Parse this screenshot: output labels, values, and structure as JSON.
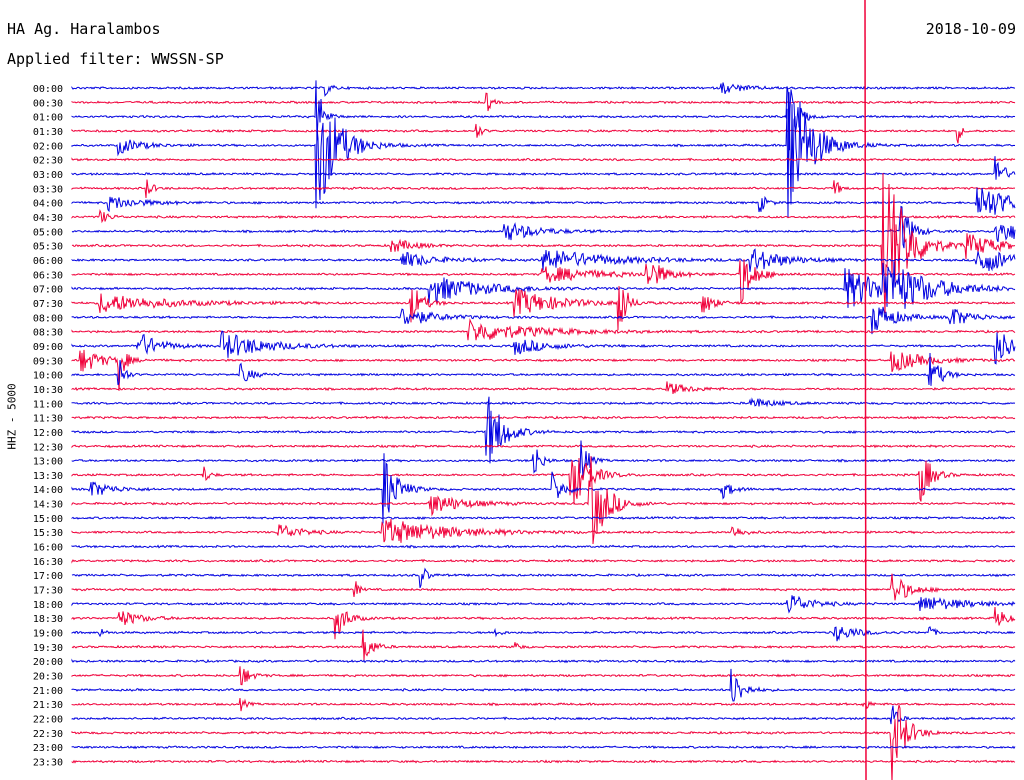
{
  "header": {
    "station": "HA Ag. Haralambos",
    "filter": "Applied filter: WWSSN-SP",
    "date": "2018-10-09"
  },
  "chart_data": {
    "type": "line",
    "subtype": "helicorder",
    "ylabel": "HHZ - 5000",
    "row_labels": [
      "00:00",
      "00:30",
      "01:00",
      "01:30",
      "02:00",
      "02:30",
      "03:00",
      "03:30",
      "04:00",
      "04:30",
      "05:00",
      "05:30",
      "06:00",
      "06:30",
      "07:00",
      "07:30",
      "08:00",
      "08:30",
      "09:00",
      "09:30",
      "10:00",
      "10:30",
      "11:00",
      "11:30",
      "12:00",
      "12:30",
      "13:00",
      "13:30",
      "14:00",
      "14:30",
      "15:00",
      "15:30",
      "16:00",
      "16:30",
      "17:00",
      "17:30",
      "18:00",
      "18:30",
      "19:00",
      "19:30",
      "20:00",
      "20:30",
      "21:00",
      "21:30",
      "22:00",
      "22:30",
      "23:00",
      "23:30"
    ],
    "colors": [
      "#0000e0",
      "#f0003a"
    ],
    "events": [
      {
        "row": 0,
        "t": 0.27,
        "amp": 0.5,
        "dur": 0.005
      },
      {
        "row": 0,
        "t": 0.69,
        "amp": 0.4,
        "dur": 0.02
      },
      {
        "row": 1,
        "t": 0.44,
        "amp": 0.8,
        "dur": 0.004
      },
      {
        "row": 2,
        "t": 0.26,
        "amp": 2.5,
        "dur": 0.006
      },
      {
        "row": 2,
        "t": 0.76,
        "amp": 3.0,
        "dur": 0.008
      },
      {
        "row": 3,
        "t": 0.43,
        "amp": 0.6,
        "dur": 0.004
      },
      {
        "row": 3,
        "t": 0.94,
        "amp": 0.8,
        "dur": 0.003
      },
      {
        "row": 4,
        "t": 0.26,
        "amp": 5.0,
        "dur": 0.02
      },
      {
        "row": 4,
        "t": 0.05,
        "amp": 0.6,
        "dur": 0.02
      },
      {
        "row": 4,
        "t": 0.76,
        "amp": 6.0,
        "dur": 0.02
      },
      {
        "row": 7,
        "t": 0.08,
        "amp": 0.7,
        "dur": 0.005
      },
      {
        "row": 7,
        "t": 0.81,
        "amp": 0.6,
        "dur": 0.004
      },
      {
        "row": 6,
        "t": 0.98,
        "amp": 2.0,
        "dur": 0.006
      },
      {
        "row": 8,
        "t": 0.04,
        "amp": 0.5,
        "dur": 0.03
      },
      {
        "row": 8,
        "t": 0.73,
        "amp": 0.7,
        "dur": 0.006
      },
      {
        "row": 8,
        "t": 0.96,
        "amp": 1.5,
        "dur": 0.03
      },
      {
        "row": 9,
        "t": 0.03,
        "amp": 0.5,
        "dur": 0.008
      },
      {
        "row": 10,
        "t": 0.46,
        "amp": 0.7,
        "dur": 0.03
      },
      {
        "row": 10,
        "t": 0.88,
        "amp": 2.0,
        "dur": 0.01
      },
      {
        "row": 10,
        "t": 0.98,
        "amp": 1.0,
        "dur": 0.03
      },
      {
        "row": 11,
        "t": 0.34,
        "amp": 0.5,
        "dur": 0.02
      },
      {
        "row": 11,
        "t": 0.86,
        "amp": 7.0,
        "dur": 0.02
      },
      {
        "row": 11,
        "t": 0.95,
        "amp": 0.8,
        "dur": 0.03
      },
      {
        "row": 12,
        "t": 0.35,
        "amp": 0.6,
        "dur": 0.03
      },
      {
        "row": 12,
        "t": 0.5,
        "amp": 0.8,
        "dur": 0.06
      },
      {
        "row": 12,
        "t": 0.72,
        "amp": 0.9,
        "dur": 0.03
      },
      {
        "row": 12,
        "t": 0.96,
        "amp": 1.0,
        "dur": 0.04
      },
      {
        "row": 13,
        "t": 0.5,
        "amp": 0.6,
        "dur": 0.05
      },
      {
        "row": 13,
        "t": 0.61,
        "amp": 1.2,
        "dur": 0.015
      },
      {
        "row": 13,
        "t": 0.71,
        "amp": 2.0,
        "dur": 0.012
      },
      {
        "row": 14,
        "t": 0.38,
        "amp": 1.0,
        "dur": 0.05
      },
      {
        "row": 14,
        "t": 0.82,
        "amp": 1.5,
        "dur": 0.04
      },
      {
        "row": 14,
        "t": 0.86,
        "amp": 2.0,
        "dur": 0.04
      },
      {
        "row": 15,
        "t": 0.03,
        "amp": 0.7,
        "dur": 0.06
      },
      {
        "row": 15,
        "t": 0.36,
        "amp": 1.5,
        "dur": 0.01
      },
      {
        "row": 15,
        "t": 0.47,
        "amp": 1.0,
        "dur": 0.04
      },
      {
        "row": 15,
        "t": 0.58,
        "amp": 3.0,
        "dur": 0.006
      },
      {
        "row": 15,
        "t": 0.67,
        "amp": 0.8,
        "dur": 0.01
      },
      {
        "row": 16,
        "t": 0.35,
        "amp": 0.7,
        "dur": 0.03
      },
      {
        "row": 16,
        "t": 0.85,
        "amp": 1.2,
        "dur": 0.02
      },
      {
        "row": 16,
        "t": 0.93,
        "amp": 0.8,
        "dur": 0.02
      },
      {
        "row": 17,
        "t": 0.42,
        "amp": 0.8,
        "dur": 0.06
      },
      {
        "row": 18,
        "t": 0.07,
        "amp": 1.0,
        "dur": 0.02
      },
      {
        "row": 18,
        "t": 0.16,
        "amp": 1.0,
        "dur": 0.04
      },
      {
        "row": 18,
        "t": 0.47,
        "amp": 0.6,
        "dur": 0.03
      },
      {
        "row": 18,
        "t": 0.98,
        "amp": 1.3,
        "dur": 0.02
      },
      {
        "row": 19,
        "t": 0.01,
        "amp": 0.9,
        "dur": 0.02
      },
      {
        "row": 19,
        "t": 0.05,
        "amp": 2.0,
        "dur": 0.005
      },
      {
        "row": 19,
        "t": 0.87,
        "amp": 0.8,
        "dur": 0.03
      },
      {
        "row": 20,
        "t": 0.05,
        "amp": 1.5,
        "dur": 0.005
      },
      {
        "row": 20,
        "t": 0.18,
        "amp": 0.7,
        "dur": 0.01
      },
      {
        "row": 20,
        "t": 0.91,
        "amp": 1.5,
        "dur": 0.01
      },
      {
        "row": 21,
        "t": 0.63,
        "amp": 0.5,
        "dur": 0.02
      },
      {
        "row": 22,
        "t": 0.72,
        "amp": 0.4,
        "dur": 0.02
      },
      {
        "row": 24,
        "t": 0.44,
        "amp": 3.0,
        "dur": 0.015
      },
      {
        "row": 26,
        "t": 0.49,
        "amp": 1.5,
        "dur": 0.006
      },
      {
        "row": 26,
        "t": 0.54,
        "amp": 2.0,
        "dur": 0.006
      },
      {
        "row": 27,
        "t": 0.14,
        "amp": 0.6,
        "dur": 0.005
      },
      {
        "row": 27,
        "t": 0.53,
        "amp": 2.5,
        "dur": 0.015
      },
      {
        "row": 27,
        "t": 0.9,
        "amp": 2.0,
        "dur": 0.01
      },
      {
        "row": 28,
        "t": 0.02,
        "amp": 0.6,
        "dur": 0.02
      },
      {
        "row": 28,
        "t": 0.33,
        "amp": 3.0,
        "dur": 0.012
      },
      {
        "row": 28,
        "t": 0.51,
        "amp": 1.2,
        "dur": 0.01
      },
      {
        "row": 28,
        "t": 0.69,
        "amp": 0.6,
        "dur": 0.01
      },
      {
        "row": 29,
        "t": 0.38,
        "amp": 0.8,
        "dur": 0.03
      },
      {
        "row": 29,
        "t": 0.55,
        "amp": 3.5,
        "dur": 0.015
      },
      {
        "row": 31,
        "t": 0.22,
        "amp": 0.6,
        "dur": 0.02
      },
      {
        "row": 31,
        "t": 0.33,
        "amp": 1.0,
        "dur": 0.06
      },
      {
        "row": 31,
        "t": 0.7,
        "amp": 0.5,
        "dur": 0.01
      },
      {
        "row": 34,
        "t": 0.37,
        "amp": 1.0,
        "dur": 0.005
      },
      {
        "row": 35,
        "t": 0.3,
        "amp": 0.7,
        "dur": 0.004
      },
      {
        "row": 35,
        "t": 0.87,
        "amp": 1.2,
        "dur": 0.015
      },
      {
        "row": 36,
        "t": 0.76,
        "amp": 0.8,
        "dur": 0.02
      },
      {
        "row": 36,
        "t": 0.9,
        "amp": 0.6,
        "dur": 0.04
      },
      {
        "row": 37,
        "t": 0.05,
        "amp": 0.6,
        "dur": 0.02
      },
      {
        "row": 37,
        "t": 0.28,
        "amp": 1.5,
        "dur": 0.01
      },
      {
        "row": 37,
        "t": 0.98,
        "amp": 0.8,
        "dur": 0.01
      },
      {
        "row": 38,
        "t": 0.03,
        "amp": 0.3,
        "dur": 0.005
      },
      {
        "row": 38,
        "t": 0.45,
        "amp": 0.4,
        "dur": 0.004
      },
      {
        "row": 38,
        "t": 0.81,
        "amp": 0.6,
        "dur": 0.02
      },
      {
        "row": 38,
        "t": 0.91,
        "amp": 0.5,
        "dur": 0.004
      },
      {
        "row": 39,
        "t": 0.31,
        "amp": 1.2,
        "dur": 0.008
      },
      {
        "row": 39,
        "t": 0.47,
        "amp": 0.4,
        "dur": 0.004
      },
      {
        "row": 41,
        "t": 0.18,
        "amp": 0.8,
        "dur": 0.008
      },
      {
        "row": 42,
        "t": 0.7,
        "amp": 1.5,
        "dur": 0.01
      },
      {
        "row": 43,
        "t": 0.18,
        "amp": 0.4,
        "dur": 0.005
      },
      {
        "row": 43,
        "t": 0.84,
        "amp": 0.6,
        "dur": 0.004
      },
      {
        "row": 44,
        "t": 0.87,
        "amp": 1.0,
        "dur": 0.005
      },
      {
        "row": 45,
        "t": 0.87,
        "amp": 3.5,
        "dur": 0.012
      }
    ]
  }
}
